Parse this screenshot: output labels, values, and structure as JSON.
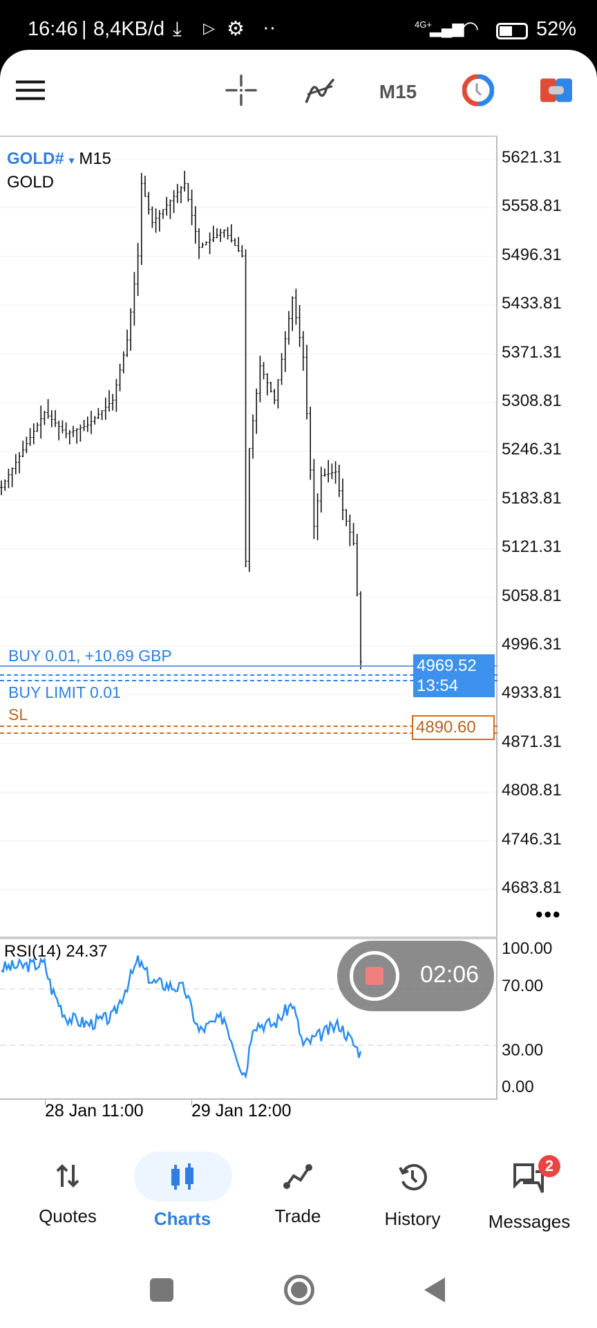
{
  "status_bar": {
    "time": "16:46",
    "speed": "8,4KB/d",
    "network": "4G+",
    "battery": "52%"
  },
  "toolbar": {
    "timeframe": "M15"
  },
  "chart": {
    "symbol": "GOLD#",
    "timeframe": "M15",
    "description": "GOLD",
    "price_labels": [
      "5621.31",
      "5558.81",
      "5496.31",
      "5433.81",
      "5371.31",
      "5308.81",
      "5246.31",
      "5183.81",
      "5121.31",
      "5058.81",
      "4996.31",
      "4933.81",
      "4871.31",
      "4808.81",
      "4746.31",
      "4683.81"
    ],
    "position_label": "BUY 0.01, +10.69 GBP",
    "order_label": "BUY LIMIT 0.01",
    "sl_label": "SL",
    "current_price": "4969.52",
    "countdown": "13:54",
    "sl_price": "4890.60",
    "colors": {
      "buy": "#2f7fe0",
      "sl": "#d2691e",
      "candle": "#111111",
      "rsi": "#2a8cf0"
    }
  },
  "rsi": {
    "label": "RSI(14) 24.37",
    "levels": [
      "100.00",
      "70.00",
      "30.00",
      "0.00"
    ]
  },
  "time_labels": [
    "28 Jan 11:00",
    "29 Jan 12:00"
  ],
  "recording": {
    "time": "02:06"
  },
  "bottom_nav": [
    {
      "label": "Quotes"
    },
    {
      "label": "Charts",
      "active": true
    },
    {
      "label": "Trade"
    },
    {
      "label": "History"
    },
    {
      "label": "Messages",
      "badge": "2"
    }
  ],
  "chart_data": {
    "type": "candlestick",
    "symbol": "GOLD#",
    "timeframe": "M15",
    "ylim": [
      4683.81,
      5621.31
    ],
    "price_path": [
      [
        0,
        5200
      ],
      [
        12,
        5296
      ],
      [
        18,
        5269
      ],
      [
        24,
        5280
      ],
      [
        31,
        5312
      ],
      [
        35,
        5389
      ],
      [
        38,
        5497
      ],
      [
        39,
        5590
      ],
      [
        42,
        5540
      ],
      [
        51,
        5590
      ],
      [
        55,
        5508
      ],
      [
        62,
        5530
      ],
      [
        67,
        5497
      ],
      [
        68,
        5105
      ],
      [
        69,
        5250
      ],
      [
        72,
        5356
      ],
      [
        76,
        5312
      ],
      [
        81,
        5443
      ],
      [
        84,
        5367
      ],
      [
        87,
        5150
      ],
      [
        89,
        5215
      ],
      [
        93,
        5220
      ],
      [
        95,
        5171
      ],
      [
        98,
        5128
      ],
      [
        99,
        5063
      ],
      [
        100,
        4976
      ]
    ],
    "rsi_path": [
      [
        0,
        85
      ],
      [
        12,
        88
      ],
      [
        14,
        70
      ],
      [
        18,
        50
      ],
      [
        24,
        45
      ],
      [
        31,
        50
      ],
      [
        38,
        90
      ],
      [
        42,
        75
      ],
      [
        51,
        70
      ],
      [
        55,
        40
      ],
      [
        62,
        50
      ],
      [
        67,
        12
      ],
      [
        68,
        10
      ],
      [
        70,
        45
      ],
      [
        76,
        45
      ],
      [
        81,
        60
      ],
      [
        84,
        30
      ],
      [
        94,
        45
      ],
      [
        100,
        24
      ]
    ],
    "rsi_levels": [
      70,
      30
    ]
  }
}
